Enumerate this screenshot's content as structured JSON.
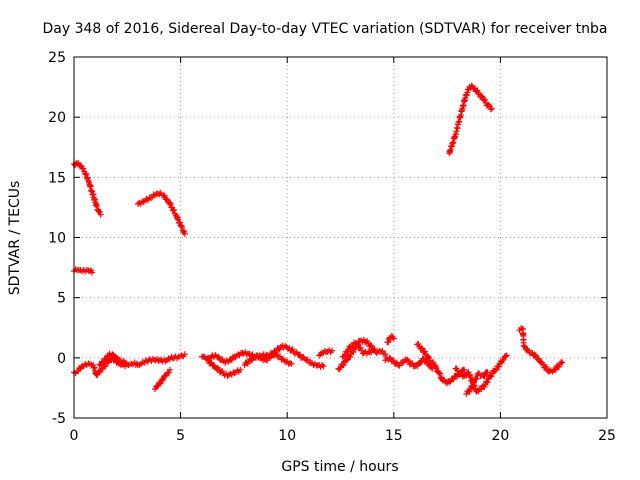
{
  "chart_data": {
    "type": "scatter",
    "title": "Day 348 of 2016, Sidereal Day-to-day VTEC variation (SDTVAR) for receiver tnba",
    "xlabel": "GPS time / hours",
    "ylabel": "SDTVAR / TECUs",
    "xlim": [
      0,
      25
    ],
    "ylim": [
      -5,
      25
    ],
    "xticks": [
      0,
      5,
      10,
      15,
      20,
      25
    ],
    "yticks": [
      -5,
      0,
      5,
      10,
      15,
      20,
      25
    ],
    "grid": true,
    "legend": "none",
    "marker": "+",
    "color": "#ff0000",
    "series": [
      {
        "name": "upper-arcs",
        "points": [
          [
            0.0,
            16.1
          ],
          [
            0.1,
            16.2
          ],
          [
            0.25,
            16.0
          ],
          [
            0.4,
            15.7
          ],
          [
            0.55,
            15.3
          ],
          [
            0.7,
            14.6
          ],
          [
            0.85,
            13.8
          ],
          [
            1.0,
            12.9
          ],
          [
            1.15,
            12.2
          ],
          [
            1.25,
            11.9
          ],
          [
            0.0,
            7.2
          ],
          [
            0.15,
            7.3
          ],
          [
            0.3,
            7.3
          ],
          [
            0.45,
            7.3
          ],
          [
            0.6,
            7.3
          ],
          [
            0.75,
            7.2
          ],
          [
            0.85,
            7.1
          ],
          [
            3.0,
            12.8
          ],
          [
            3.2,
            13.0
          ],
          [
            3.4,
            13.2
          ],
          [
            3.6,
            13.3
          ],
          [
            3.8,
            13.5
          ],
          [
            4.0,
            13.6
          ],
          [
            4.2,
            13.5
          ],
          [
            4.4,
            13.1
          ],
          [
            4.6,
            12.5
          ],
          [
            4.8,
            11.8
          ],
          [
            5.0,
            11.0
          ],
          [
            5.2,
            10.3
          ],
          [
            17.6,
            17.0
          ],
          [
            17.75,
            17.8
          ],
          [
            17.9,
            18.6
          ],
          [
            18.05,
            19.6
          ],
          [
            18.2,
            20.6
          ],
          [
            18.35,
            21.6
          ],
          [
            18.5,
            22.3
          ],
          [
            18.65,
            22.6
          ],
          [
            18.8,
            22.4
          ],
          [
            19.0,
            21.9
          ],
          [
            19.2,
            21.5
          ],
          [
            19.4,
            21.0
          ],
          [
            19.6,
            20.7
          ]
        ]
      },
      {
        "name": "near-zero-arcs",
        "points": [
          [
            0.0,
            -1.2
          ],
          [
            0.15,
            -1.1
          ],
          [
            0.3,
            -0.9
          ],
          [
            0.45,
            -0.7
          ],
          [
            0.6,
            -0.6
          ],
          [
            0.75,
            -0.5
          ],
          [
            0.9,
            -0.6
          ],
          [
            1.05,
            -1.4
          ],
          [
            1.2,
            -1.2
          ],
          [
            1.35,
            -0.9
          ],
          [
            1.5,
            -0.5
          ],
          [
            1.65,
            -0.2
          ],
          [
            1.8,
            0.0
          ],
          [
            1.95,
            -0.2
          ],
          [
            2.1,
            -0.5
          ],
          [
            2.25,
            -0.6
          ],
          [
            2.4,
            -0.7
          ],
          [
            2.55,
            -0.6
          ],
          [
            2.7,
            -0.5
          ],
          [
            2.85,
            -0.4
          ],
          [
            3.0,
            -0.6
          ],
          [
            3.15,
            -0.5
          ],
          [
            3.3,
            -0.4
          ],
          [
            3.5,
            -0.2
          ],
          [
            3.7,
            -0.1
          ],
          [
            3.9,
            -0.1
          ],
          [
            4.1,
            -0.2
          ],
          [
            4.3,
            -0.3
          ],
          [
            4.5,
            -0.1
          ],
          [
            4.7,
            0.0
          ],
          [
            4.9,
            0.1
          ],
          [
            5.05,
            0.2
          ],
          [
            5.2,
            0.3
          ],
          [
            1.2,
            -0.6
          ],
          [
            1.4,
            -0.3
          ],
          [
            1.6,
            0.2
          ],
          [
            1.8,
            0.3
          ],
          [
            2.0,
            0.0
          ],
          [
            2.2,
            -0.2
          ],
          [
            2.4,
            -0.4
          ],
          [
            3.8,
            -2.6
          ],
          [
            3.95,
            -2.3
          ],
          [
            4.1,
            -1.9
          ],
          [
            4.25,
            -1.5
          ],
          [
            4.4,
            -1.2
          ],
          [
            4.5,
            -1.0
          ],
          [
            6.0,
            0.1
          ],
          [
            6.2,
            -0.1
          ],
          [
            6.4,
            -0.4
          ],
          [
            6.6,
            -0.7
          ],
          [
            6.8,
            -1.0
          ],
          [
            7.0,
            -1.3
          ],
          [
            7.2,
            -1.5
          ],
          [
            7.4,
            -1.4
          ],
          [
            7.6,
            -1.2
          ],
          [
            7.8,
            -1.0
          ],
          [
            6.3,
            0.0
          ],
          [
            6.5,
            0.2
          ],
          [
            6.7,
            0.1
          ],
          [
            6.9,
            -0.2
          ],
          [
            7.1,
            -0.4
          ],
          [
            7.3,
            -0.2
          ],
          [
            7.5,
            0.1
          ],
          [
            7.7,
            0.3
          ],
          [
            7.9,
            0.4
          ],
          [
            8.1,
            0.3
          ],
          [
            8.3,
            0.2
          ],
          [
            8.5,
            0.1
          ],
          [
            8.7,
            0.2
          ],
          [
            8.9,
            0.3
          ],
          [
            9.1,
            0.2
          ],
          [
            9.3,
            0.3
          ],
          [
            9.5,
            0.6
          ],
          [
            9.7,
            0.9
          ],
          [
            9.9,
            1.0
          ],
          [
            10.1,
            0.8
          ],
          [
            10.3,
            0.5
          ],
          [
            10.5,
            0.3
          ],
          [
            10.7,
            0.0
          ],
          [
            10.9,
            -0.2
          ],
          [
            11.1,
            -0.4
          ],
          [
            11.3,
            -0.5
          ],
          [
            11.5,
            -0.6
          ],
          [
            11.7,
            -0.7
          ],
          [
            8.0,
            -0.6
          ],
          [
            8.2,
            -0.3
          ],
          [
            8.4,
            0.0
          ],
          [
            8.6,
            0.2
          ],
          [
            8.8,
            0.0
          ],
          [
            9.0,
            -0.2
          ],
          [
            9.2,
            0.0
          ],
          [
            9.4,
            0.2
          ],
          [
            9.6,
            0.1
          ],
          [
            9.8,
            -0.1
          ],
          [
            10.0,
            -0.3
          ],
          [
            10.2,
            -0.5
          ],
          [
            11.5,
            0.2
          ],
          [
            11.7,
            0.4
          ],
          [
            11.9,
            0.5
          ],
          [
            12.1,
            0.6
          ],
          [
            12.4,
            -0.9
          ],
          [
            12.6,
            -0.6
          ],
          [
            12.8,
            -0.2
          ],
          [
            13.0,
            0.3
          ],
          [
            13.2,
            0.9
          ],
          [
            13.4,
            1.4
          ],
          [
            13.6,
            1.5
          ],
          [
            13.8,
            1.2
          ],
          [
            14.0,
            0.8
          ],
          [
            14.2,
            0.4
          ],
          [
            14.4,
            0.5
          ],
          [
            14.6,
            0.3
          ],
          [
            12.6,
            0.1
          ],
          [
            12.8,
            0.5
          ],
          [
            13.0,
            1.0
          ],
          [
            13.2,
            1.2
          ],
          [
            13.4,
            0.8
          ],
          [
            13.6,
            0.4
          ],
          [
            13.8,
            0.5
          ],
          [
            14.0,
            0.6
          ],
          [
            14.7,
            1.3
          ],
          [
            14.9,
            1.8
          ],
          [
            15.0,
            1.6
          ],
          [
            14.6,
            -0.2
          ],
          [
            14.8,
            0.0
          ],
          [
            15.0,
            -0.3
          ],
          [
            15.2,
            -0.6
          ],
          [
            15.4,
            -0.4
          ],
          [
            15.6,
            -0.2
          ],
          [
            15.8,
            -0.5
          ],
          [
            16.0,
            -0.7
          ],
          [
            16.2,
            -0.4
          ],
          [
            16.4,
            -0.1
          ],
          [
            16.6,
            -0.5
          ],
          [
            16.8,
            -0.9
          ],
          [
            16.1,
            1.1
          ],
          [
            16.3,
            0.8
          ],
          [
            16.5,
            0.3
          ],
          [
            16.7,
            -0.2
          ],
          [
            16.9,
            -0.6
          ],
          [
            17.1,
            -1.2
          ],
          [
            17.3,
            -1.9
          ],
          [
            17.5,
            -2.1
          ],
          [
            17.7,
            -1.8
          ],
          [
            17.9,
            -1.5
          ],
          [
            18.1,
            -1.3
          ],
          [
            18.3,
            -1.0
          ],
          [
            17.9,
            -0.9
          ],
          [
            18.1,
            -1.4
          ],
          [
            18.3,
            -1.5
          ],
          [
            18.5,
            -1.2
          ],
          [
            18.7,
            -2.1
          ],
          [
            18.9,
            -2.8
          ],
          [
            19.1,
            -2.6
          ],
          [
            19.3,
            -2.2
          ],
          [
            19.5,
            -1.6
          ],
          [
            19.7,
            -1.1
          ],
          [
            19.9,
            -0.7
          ],
          [
            20.1,
            -0.2
          ],
          [
            20.3,
            0.2
          ],
          [
            18.4,
            -3.0
          ],
          [
            18.6,
            -2.6
          ],
          [
            18.8,
            -1.8
          ],
          [
            19.0,
            -1.3
          ],
          [
            19.2,
            -1.5
          ],
          [
            19.4,
            -1.2
          ],
          [
            20.9,
            2.3
          ],
          [
            21.05,
            2.4
          ],
          [
            21.1,
            1.0
          ],
          [
            21.3,
            0.6
          ],
          [
            21.5,
            0.4
          ],
          [
            21.7,
            0.0
          ],
          [
            21.9,
            -0.4
          ],
          [
            22.1,
            -0.8
          ],
          [
            22.3,
            -1.1
          ],
          [
            22.5,
            -1.0
          ],
          [
            22.7,
            -0.7
          ],
          [
            22.9,
            -0.4
          ]
        ]
      }
    ]
  }
}
